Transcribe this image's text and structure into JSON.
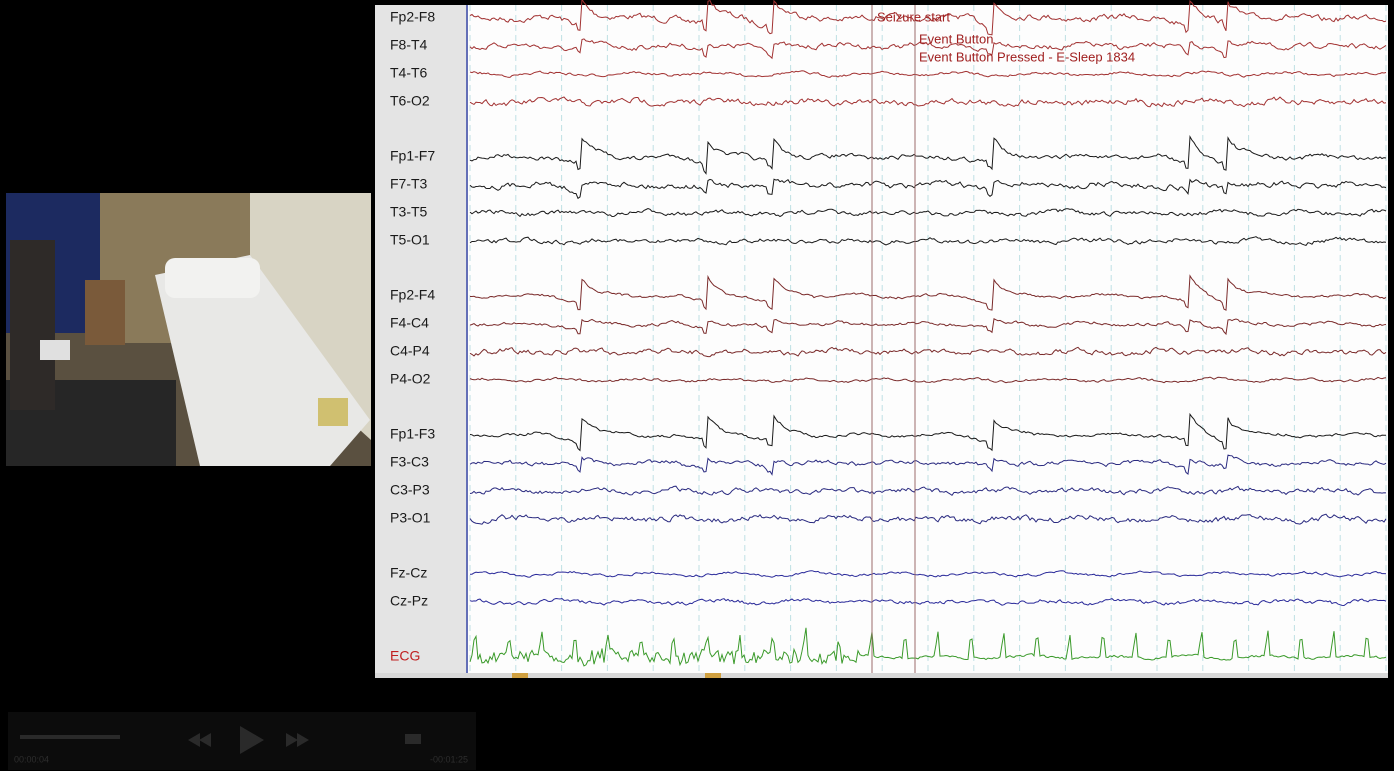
{
  "eeg": {
    "channels": [
      {
        "label": "Fp2-F8",
        "color": "#a23232"
      },
      {
        "label": "F8-T4",
        "color": "#a23232"
      },
      {
        "label": "T4-T6",
        "color": "#a23232"
      },
      {
        "label": "T6-O2",
        "color": "#a23232"
      },
      {
        "label": "Fp1-F7",
        "color": "#1a1a1a"
      },
      {
        "label": "F7-T3",
        "color": "#1a1a1a"
      },
      {
        "label": "T3-T5",
        "color": "#1a1a1a"
      },
      {
        "label": "T5-O1",
        "color": "#1a1a1a"
      },
      {
        "label": "Fp2-F4",
        "color": "#7a2a2a"
      },
      {
        "label": "F4-C4",
        "color": "#7a2a2a"
      },
      {
        "label": "C4-P4",
        "color": "#7a2a2a"
      },
      {
        "label": "P4-O2",
        "color": "#7a2a2a"
      },
      {
        "label": "Fp1-F3",
        "color": "#1a1a1a"
      },
      {
        "label": "F3-C3",
        "color": "#2a2a80"
      },
      {
        "label": "C3-P3",
        "color": "#2a2a80"
      },
      {
        "label": "P3-O1",
        "color": "#2a2a80"
      },
      {
        "label": "Fz-Cz",
        "color": "#2a2a9a"
      },
      {
        "label": "Cz-Pz",
        "color": "#2a2a9a"
      },
      {
        "label": "ECG",
        "color": "#3a9a2a"
      }
    ],
    "annotations": [
      "Seizure start",
      "Event Button",
      "Event Button Pressed - E-Sleep 1834"
    ]
  },
  "player": {
    "elapsed": "00:00:04",
    "remaining": "-00:01:25"
  }
}
